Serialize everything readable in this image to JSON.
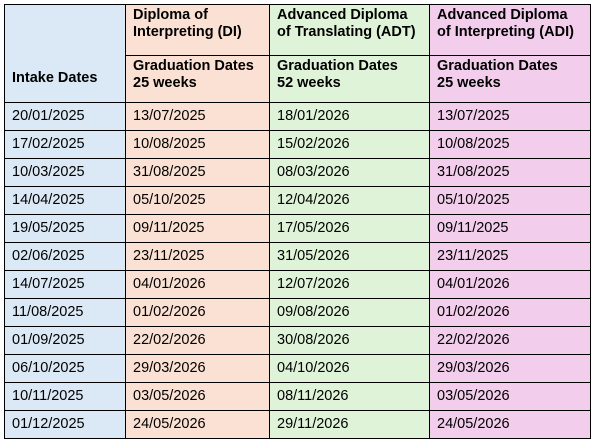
{
  "header": {
    "intake_label": "Intake Dates",
    "programs": [
      {
        "name": "Diploma of Interpreting (DI)",
        "graduation_label": "Graduation Dates",
        "duration": "25 weeks"
      },
      {
        "name": "Advanced Diploma of Translating (ADT)",
        "graduation_label": "Graduation Dates",
        "duration": "52 weeks"
      },
      {
        "name": "Advanced Diploma of Interpreting (ADI)",
        "graduation_label": "Graduation Dates",
        "duration": "25 weeks"
      }
    ]
  },
  "rows": [
    {
      "intake": "20/01/2025",
      "di": "13/07/2025",
      "adt": "18/01/2026",
      "adi": "13/07/2025"
    },
    {
      "intake": "17/02/2025",
      "di": "10/08/2025",
      "adt": "15/02/2026",
      "adi": "10/08/2025"
    },
    {
      "intake": "10/03/2025",
      "di": "31/08/2025",
      "adt": "08/03/2026",
      "adi": "31/08/2025"
    },
    {
      "intake": "14/04/2025",
      "di": "05/10/2025",
      "adt": "12/04/2026",
      "adi": "05/10/2025"
    },
    {
      "intake": "19/05/2025",
      "di": "09/11/2025",
      "adt": "17/05/2026",
      "adi": "09/11/2025"
    },
    {
      "intake": "02/06/2025",
      "di": "23/11/2025",
      "adt": "31/05/2026",
      "adi": "23/11/2025"
    },
    {
      "intake": "14/07/2025",
      "di": "04/01/2026",
      "adt": "12/07/2026",
      "adi": "04/01/2026"
    },
    {
      "intake": "11/08/2025",
      "di": "01/02/2026",
      "adt": "09/08/2026",
      "adi": "01/02/2026"
    },
    {
      "intake": "01/09/2025",
      "di": "22/02/2026",
      "adt": "30/08/2026",
      "adi": "22/02/2026"
    },
    {
      "intake": "06/10/2025",
      "di": "29/03/2026",
      "adt": "04/10/2026",
      "adi": "29/03/2026"
    },
    {
      "intake": "10/11/2025",
      "di": "03/05/2026",
      "adt": "08/11/2026",
      "adi": "03/05/2026"
    },
    {
      "intake": "01/12/2025",
      "di": "24/05/2026",
      "adt": "29/11/2026",
      "adi": "24/05/2026"
    }
  ],
  "colors": {
    "intake_column": "#dbe8f5",
    "di_column": "#fbe1d3",
    "adt_column": "#dff3d8",
    "adi_column": "#f2cdec",
    "border": "#000000"
  }
}
